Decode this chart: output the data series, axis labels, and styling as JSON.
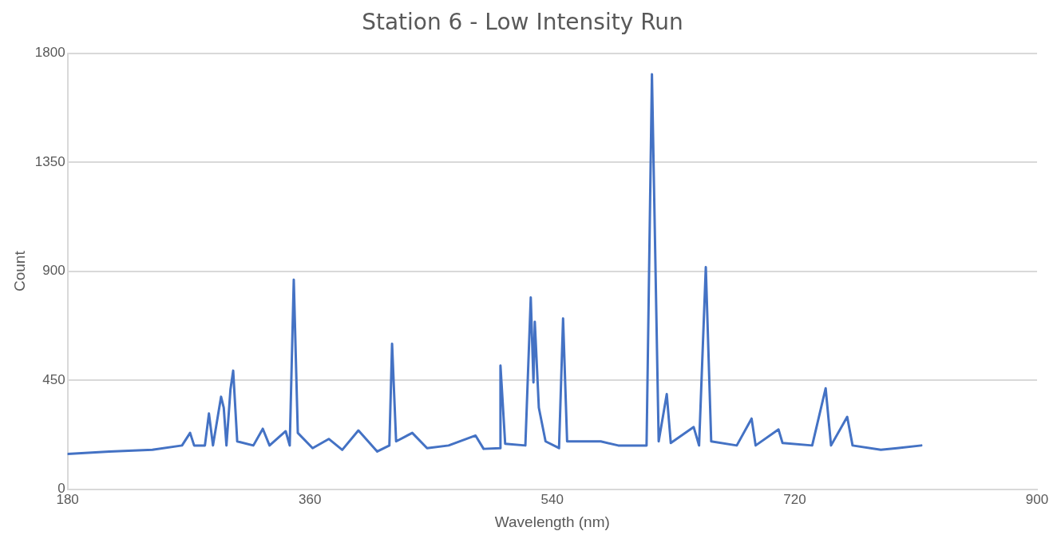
{
  "chart_data": {
    "type": "line",
    "title": "Station 6 - Low Intensity Run",
    "xlabel": "Wavelength (nm)",
    "ylabel": "Count",
    "xlim": [
      180,
      900
    ],
    "xticks": [
      180,
      360,
      540,
      720,
      900
    ],
    "ylim": [
      0,
      1800
    ],
    "yticks": [
      0,
      450,
      900,
      1350,
      1800
    ],
    "grid": "y",
    "legend": false,
    "marker": "none",
    "line_style": "solid",
    "series": [
      {
        "color": "#4472c4",
        "x": [
          180,
          211,
          243,
          265,
          271,
          274,
          282,
          285,
          288,
          294,
          296,
          298,
          301,
          303,
          306,
          318,
          325,
          330,
          342,
          345,
          348,
          351,
          362,
          374,
          384,
          396,
          410,
          419,
          421,
          424,
          436,
          447,
          463,
          483,
          489,
          501,
          501.5,
          505,
          520,
          524,
          526,
          527,
          530,
          535,
          545,
          548,
          551,
          576,
          589,
          610,
          614,
          619,
          625,
          628,
          645,
          649,
          654,
          658,
          677,
          688,
          691,
          708,
          711,
          733,
          743,
          747,
          759,
          763,
          784,
          796,
          814
        ],
        "values": [
          146,
          156,
          163,
          181,
          233,
          181,
          181,
          313,
          181,
          382,
          337,
          181,
          413,
          490,
          198,
          181,
          250,
          181,
          240,
          181,
          865,
          233,
          170,
          208,
          163,
          243,
          156,
          181,
          601,
          198,
          233,
          170,
          181,
          222,
          167,
          170,
          511,
          188,
          181,
          792,
          441,
          691,
          337,
          198,
          170,
          705,
          198,
          198,
          181,
          181,
          1713,
          198,
          393,
          191,
          257,
          181,
          917,
          198,
          181,
          292,
          181,
          247,
          191,
          181,
          417,
          181,
          299,
          181,
          163,
          170,
          181
        ]
      }
    ]
  }
}
